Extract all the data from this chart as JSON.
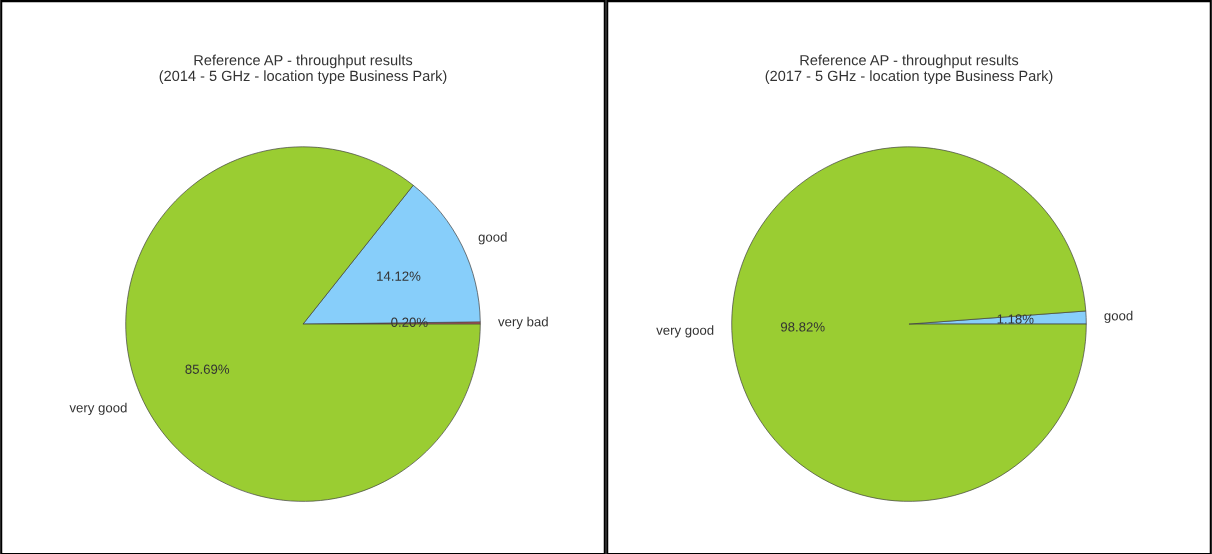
{
  "chart_data": [
    {
      "type": "pie",
      "title": "Reference AP - throughput results\n(2014 - 5 GHz - location type Business Park)",
      "categories": [
        "very bad",
        "good",
        "very good"
      ],
      "values": [
        0.2,
        14.12,
        85.69
      ],
      "colors": [
        "#cd5c5c",
        "#87cefa",
        "#9acd32"
      ],
      "value_labels": [
        "0.20%",
        "14.12%",
        "85.69%"
      ]
    },
    {
      "type": "pie",
      "title": "Reference AP - throughput results\n(2017 - 5 GHz - location type Business Park)",
      "categories": [
        "good",
        "very good"
      ],
      "values": [
        1.18,
        98.82
      ],
      "colors": [
        "#87cefa",
        "#9acd32"
      ],
      "value_labels": [
        "1.18%",
        "98.82%"
      ]
    }
  ]
}
